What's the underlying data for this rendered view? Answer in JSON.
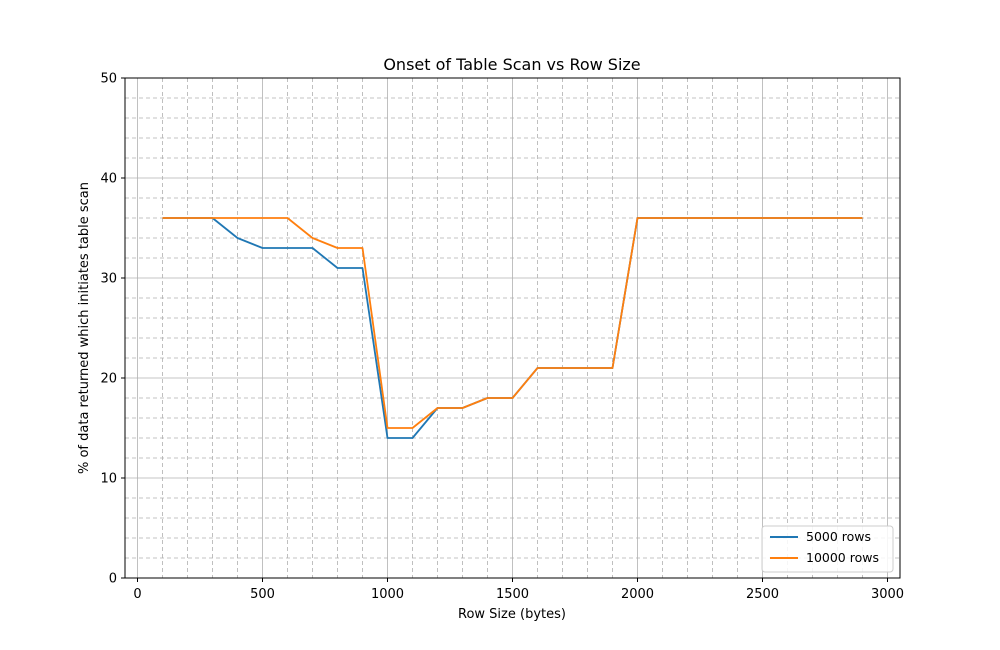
{
  "chart_data": {
    "type": "line",
    "title": "Onset of Table Scan vs Row Size",
    "xlabel": "Row Size (bytes)",
    "ylabel": "% of data returned which initiates table scan",
    "xlim": [
      -50,
      3050
    ],
    "ylim": [
      0,
      50
    ],
    "x_ticks": [
      0,
      500,
      1000,
      1500,
      2000,
      2500,
      3000
    ],
    "x_tick_labels": [
      "0",
      "500",
      "1000",
      "1500",
      "2000",
      "2500",
      "3000"
    ],
    "y_ticks": [
      0,
      10,
      20,
      30,
      40,
      50
    ],
    "y_tick_labels": [
      "0",
      "10",
      "20",
      "30",
      "40",
      "50"
    ],
    "grid": {
      "major": "solid",
      "minor": "dashed",
      "x_minor_step": 100,
      "y_minor_step": 2
    },
    "legend_position": "bottom-right",
    "x": [
      100,
      200,
      300,
      400,
      500,
      600,
      700,
      800,
      900,
      1000,
      1100,
      1200,
      1300,
      1400,
      1500,
      1600,
      1700,
      1800,
      1900,
      2000,
      2100,
      2200,
      2300,
      2400,
      2500,
      2600,
      2700,
      2800,
      2900
    ],
    "series": [
      {
        "name": "5000 rows",
        "color": "#1f77b4",
        "values": [
          36,
          36,
          36,
          34,
          33,
          33,
          33,
          31,
          31,
          14,
          14,
          17,
          17,
          18,
          18,
          21,
          21,
          21,
          21,
          36,
          36,
          36,
          36,
          36,
          36,
          36,
          36,
          36,
          36
        ]
      },
      {
        "name": "10000 rows",
        "color": "#ff7f0e",
        "values": [
          36,
          36,
          36,
          36,
          36,
          36,
          34,
          33,
          33,
          15,
          15,
          17,
          17,
          18,
          18,
          21,
          21,
          21,
          21,
          36,
          36,
          36,
          36,
          36,
          36,
          36,
          36,
          36,
          36
        ]
      }
    ]
  }
}
